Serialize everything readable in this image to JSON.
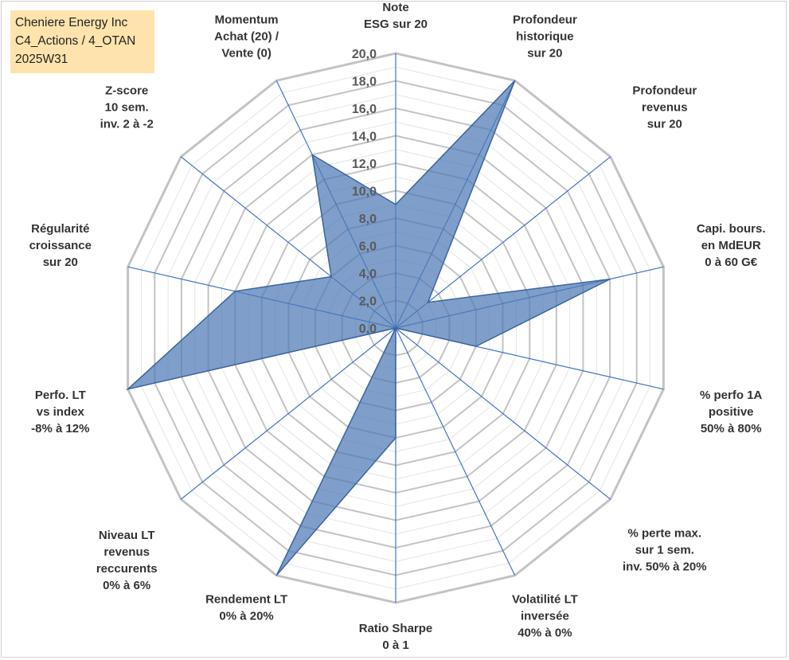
{
  "info_box": {
    "line1": "Cheniere Energy Inc",
    "line2": "C4_Actions / 4_OTAN",
    "line3": "2025W31"
  },
  "chart_data": {
    "type": "radar",
    "title": "",
    "rmin": 0,
    "rmax": 20,
    "tick_step": 2,
    "tick_labels": [
      "0,0",
      "2,0",
      "4,0",
      "6,0",
      "8,0",
      "10,0",
      "12,0",
      "14,0",
      "16,0",
      "18,0",
      "20,0"
    ],
    "grid": true,
    "categories": [
      [
        "Note",
        "ESG sur 20"
      ],
      [
        "Profondeur",
        "historique",
        "sur 20"
      ],
      [
        "Profondeur",
        "revenus",
        "sur 20"
      ],
      [
        "Capi. bours.",
        "en MdEUR",
        "0 à 60 G€"
      ],
      [
        "% perfo 1A",
        "positive",
        "50% à 80%"
      ],
      [
        "% perte max.",
        "sur 1 sem.",
        "inv. 50% à 20%"
      ],
      [
        "Volatilité LT",
        "inversée",
        "40% à 0%"
      ],
      [
        "Ratio Sharpe",
        "0 à 1"
      ],
      [
        "Rendement LT",
        "0% à 20%"
      ],
      [
        "Niveau LT",
        "revenus",
        "reccurents",
        "0% à 6%"
      ],
      [
        "Perfo. LT",
        "vs index",
        "-8% à 12%"
      ],
      [
        "Régularité",
        "croissance",
        "sur 20"
      ],
      [
        "Z-score",
        "10 sem.",
        "inv. 2 à -2"
      ],
      [
        "Momentum",
        "Achat (20) /",
        "Vente (0)"
      ]
    ],
    "series": [
      {
        "values": [
          9.0,
          20.0,
          3.0,
          16.0,
          6.0,
          0.0,
          0.0,
          8.0,
          20.0,
          0.0,
          20.0,
          12.0,
          6.0,
          14.0
        ],
        "color": "#4e7ab5"
      }
    ]
  },
  "colors": {
    "ring": "#c3c3c3",
    "spoke": "#4472c4",
    "fill": "#4e7ab5",
    "info_bg": "#ffe3ad"
  }
}
